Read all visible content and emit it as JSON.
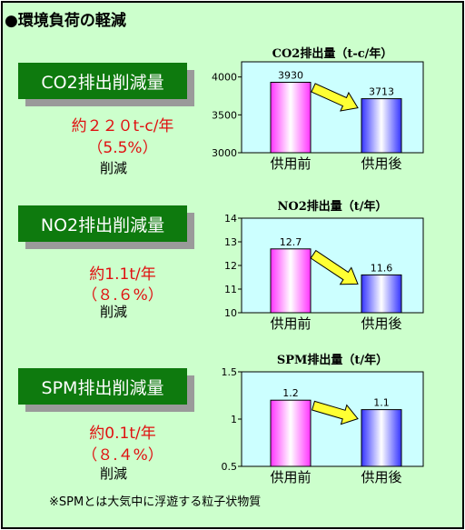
{
  "heading": "●環境負荷の軽減",
  "sections": [
    {
      "label": "CO2排出削減量",
      "amount": "約２２０t-c/年",
      "percent": "（5.5%）",
      "note": "削減"
    },
    {
      "label": "NO2排出削減量",
      "amount": "約1.1t/年",
      "percent": "（８.６%）",
      "note": "削減"
    },
    {
      "label": "SPM排出削減量",
      "amount": "約0.1t/年",
      "percent": "（８.４%）",
      "note": "削減"
    }
  ],
  "footnote": "※SPMとは大気中に浮遊する粒子状物質",
  "colors": {
    "background": "#ccffcc",
    "label_box": "#0e7a0e",
    "plot_area": "#ccffff",
    "bar_before": "#ff33ff",
    "bar_after": "#3333ff",
    "arrow": "#ffff33",
    "red_text": "#e01010"
  },
  "chart_data": [
    {
      "type": "bar",
      "title": "CO2排出量（t-c/年）",
      "categories": [
        "供用前",
        "供用後"
      ],
      "values": [
        3930,
        3713
      ],
      "data_labels": [
        "3930",
        "3713"
      ],
      "yticks": [
        "4000",
        "3500",
        "3000"
      ],
      "ylim": [
        3000,
        4200
      ]
    },
    {
      "type": "bar",
      "title": "NO2排出量（t/年）",
      "categories": [
        "供用前",
        "供用後"
      ],
      "values": [
        12.7,
        11.6
      ],
      "data_labels": [
        "12.7",
        "11.6"
      ],
      "yticks": [
        "14",
        "13",
        "12",
        "11",
        "10"
      ],
      "ylim": [
        10,
        14
      ]
    },
    {
      "type": "bar",
      "title": "SPM排出量（t/年）",
      "categories": [
        "供用前",
        "供用後"
      ],
      "values": [
        1.2,
        1.1
      ],
      "data_labels": [
        "1.2",
        "1.1"
      ],
      "yticks": [
        "1.5",
        "1",
        "0.5"
      ],
      "ylim": [
        0.5,
        1.5
      ]
    }
  ]
}
